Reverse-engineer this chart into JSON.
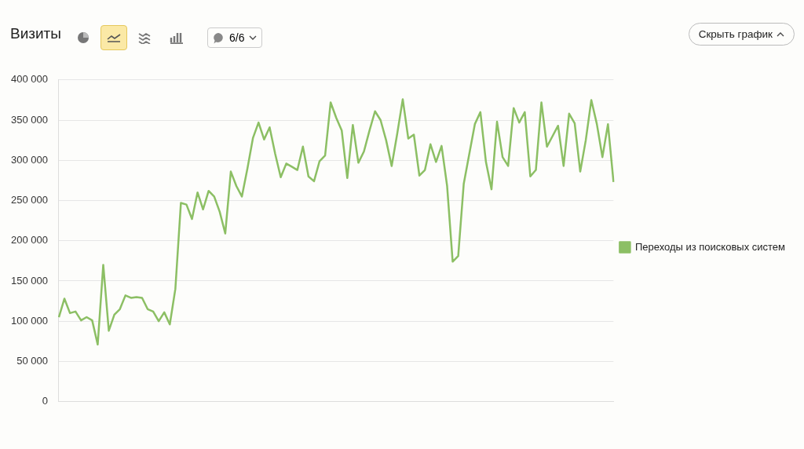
{
  "chart_data": {
    "type": "line",
    "title": "Визиты",
    "annotations": [
      "6/6",
      "Скрыть график"
    ],
    "categories": [
      null,
      null,
      null,
      null,
      null,
      null,
      null,
      null,
      null,
      null,
      null,
      null,
      null,
      null,
      null,
      null,
      null,
      null,
      null,
      null,
      null,
      null,
      null,
      null,
      null,
      null,
      null,
      null,
      null,
      null,
      null,
      null,
      null,
      null,
      null,
      null,
      null,
      null,
      null,
      null,
      null,
      null,
      null,
      null,
      null,
      null,
      null,
      null,
      null,
      null,
      null,
      null,
      null,
      null,
      null,
      null,
      null,
      null,
      null,
      null,
      null,
      null,
      null,
      null,
      null,
      null,
      null,
      null,
      null,
      null,
      null,
      null,
      null,
      null,
      null,
      null,
      null,
      null,
      null,
      null,
      null,
      null,
      null,
      null,
      null,
      null,
      null,
      null,
      null,
      null,
      null,
      null,
      null,
      null,
      null,
      null,
      null,
      null,
      null,
      null,
      null
    ],
    "series": [
      {
        "name": "Переходы из поисковых систем",
        "color": "#8cbf64",
        "values": [
          105000,
          128000,
          110000,
          112000,
          101000,
          105000,
          101000,
          71000,
          170000,
          88000,
          108000,
          115000,
          132000,
          129000,
          130000,
          129000,
          115000,
          112000,
          100000,
          111000,
          96000,
          140000,
          247000,
          245000,
          227000,
          260000,
          239000,
          262000,
          255000,
          236000,
          209000,
          286000,
          268000,
          255000,
          290000,
          328000,
          347000,
          326000,
          341000,
          308000,
          279000,
          296000,
          292000,
          288000,
          317000,
          280000,
          274000,
          299000,
          306000,
          372000,
          353000,
          337000,
          278000,
          344000,
          297000,
          311000,
          337000,
          361000,
          350000,
          325000,
          293000,
          333000,
          376000,
          327000,
          332000,
          281000,
          288000,
          320000,
          298000,
          318000,
          268000,
          174000,
          181000,
          271000,
          308000,
          345000,
          360000,
          298000,
          264000,
          348000,
          304000,
          293000,
          365000,
          347000,
          360000,
          280000,
          288000,
          372000,
          317000,
          330000,
          343000,
          293000,
          358000,
          346000,
          286000,
          325000,
          375000,
          345000,
          304000,
          345000,
          273000
        ]
      }
    ],
    "ylim": [
      0,
      400000
    ],
    "yticks": [
      0,
      50000,
      100000,
      150000,
      200000,
      250000,
      300000,
      350000,
      400000
    ],
    "grid": "y",
    "legend": "right",
    "marker": "none",
    "line_style": "solid"
  }
}
